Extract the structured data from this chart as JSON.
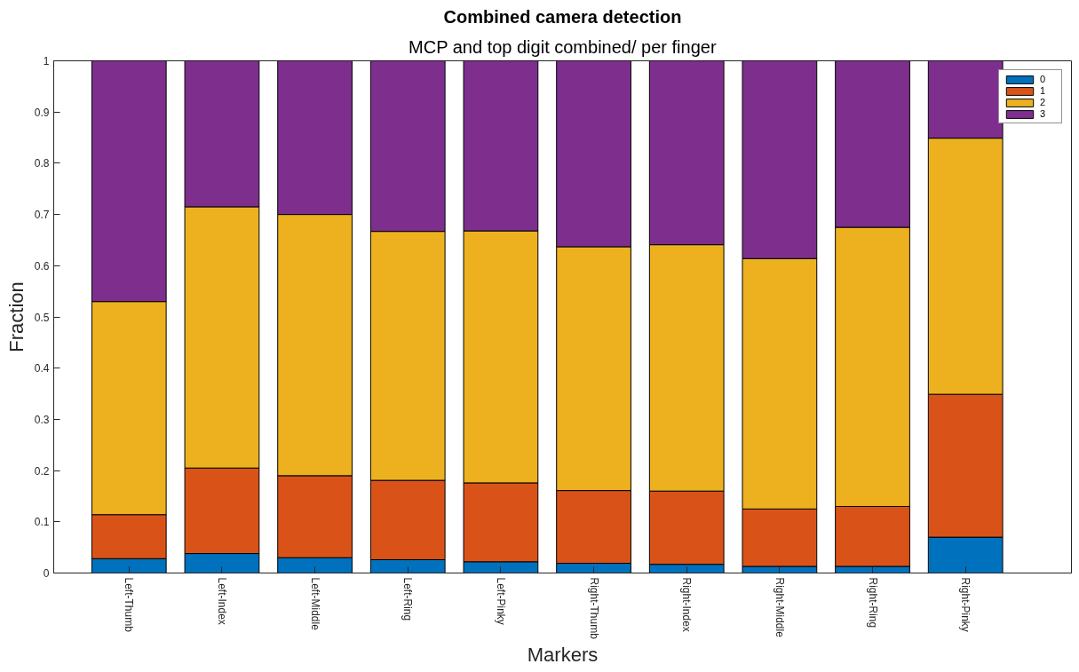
{
  "chart_data": {
    "type": "bar",
    "title": "Combined camera detection",
    "subtitle": "MCP and top digit combined/ per finger",
    "xlabel": "Markers",
    "ylabel": "Fraction",
    "categories": [
      "Left-Thumb",
      "Left-Index",
      "Left-Middle",
      "Left-Ring",
      "Left-Pinky",
      "Right-Thumb",
      "Right-Index",
      "Right-Middle",
      "Right-Ring",
      "Right-Pinky"
    ],
    "stacked": true,
    "series": [
      {
        "name": "0",
        "color": "#0072bd",
        "values": [
          0.028,
          0.038,
          0.03,
          0.026,
          0.022,
          0.019,
          0.017,
          0.013,
          0.013,
          0.07
        ]
      },
      {
        "name": "1",
        "color": "#d95319",
        "values": [
          0.086,
          0.167,
          0.16,
          0.155,
          0.154,
          0.142,
          0.143,
          0.112,
          0.117,
          0.279
        ]
      },
      {
        "name": "2",
        "color": "#edb120",
        "values": [
          0.416,
          0.51,
          0.51,
          0.486,
          0.492,
          0.476,
          0.481,
          0.489,
          0.545,
          0.5
        ]
      },
      {
        "name": "3",
        "color": "#7e2f8e",
        "values": [
          0.47,
          0.285,
          0.3,
          0.333,
          0.332,
          0.363,
          0.359,
          0.386,
          0.325,
          0.151
        ]
      }
    ],
    "ylim": [
      0,
      1
    ],
    "yticks": [
      0,
      0.1,
      0.2,
      0.3,
      0.4,
      0.5,
      0.6,
      0.7,
      0.8,
      0.9,
      1
    ],
    "legend": "top right"
  }
}
